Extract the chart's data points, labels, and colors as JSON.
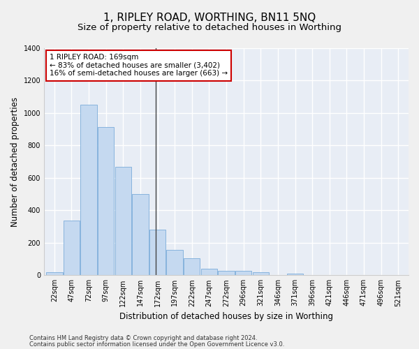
{
  "title": "1, RIPLEY ROAD, WORTHING, BN11 5NQ",
  "subtitle": "Size of property relative to detached houses in Worthing",
  "xlabel": "Distribution of detached houses by size in Worthing",
  "ylabel": "Number of detached properties",
  "categories": [
    "22sqm",
    "47sqm",
    "72sqm",
    "97sqm",
    "122sqm",
    "147sqm",
    "172sqm",
    "197sqm",
    "222sqm",
    "247sqm",
    "272sqm",
    "296sqm",
    "321sqm",
    "346sqm",
    "371sqm",
    "396sqm",
    "421sqm",
    "446sqm",
    "471sqm",
    "496sqm",
    "521sqm"
  ],
  "values": [
    20,
    335,
    1050,
    915,
    670,
    500,
    280,
    155,
    105,
    38,
    25,
    25,
    18,
    0,
    12,
    0,
    0,
    0,
    0,
    0,
    0
  ],
  "bar_color": "#c5d9f0",
  "bar_edge_color": "#7aacda",
  "annotation_text": "1 RIPLEY ROAD: 169sqm\n← 83% of detached houses are smaller (3,402)\n16% of semi-detached houses are larger (663) →",
  "annotation_box_color": "#ffffff",
  "annotation_box_edge_color": "#cc0000",
  "ylim": [
    0,
    1400
  ],
  "yticks": [
    0,
    200,
    400,
    600,
    800,
    1000,
    1200,
    1400
  ],
  "background_color": "#e8edf5",
  "plot_bg_color": "#e8edf5",
  "fig_bg_color": "#f0f0f0",
  "grid_color": "#ffffff",
  "footer_line1": "Contains HM Land Registry data © Crown copyright and database right 2024.",
  "footer_line2": "Contains public sector information licensed under the Open Government Licence v3.0.",
  "property_sqm": 169,
  "title_fontsize": 11,
  "subtitle_fontsize": 9.5,
  "axis_label_fontsize": 8.5,
  "tick_fontsize": 7,
  "annotation_fontsize": 7.5,
  "footer_fontsize": 6
}
